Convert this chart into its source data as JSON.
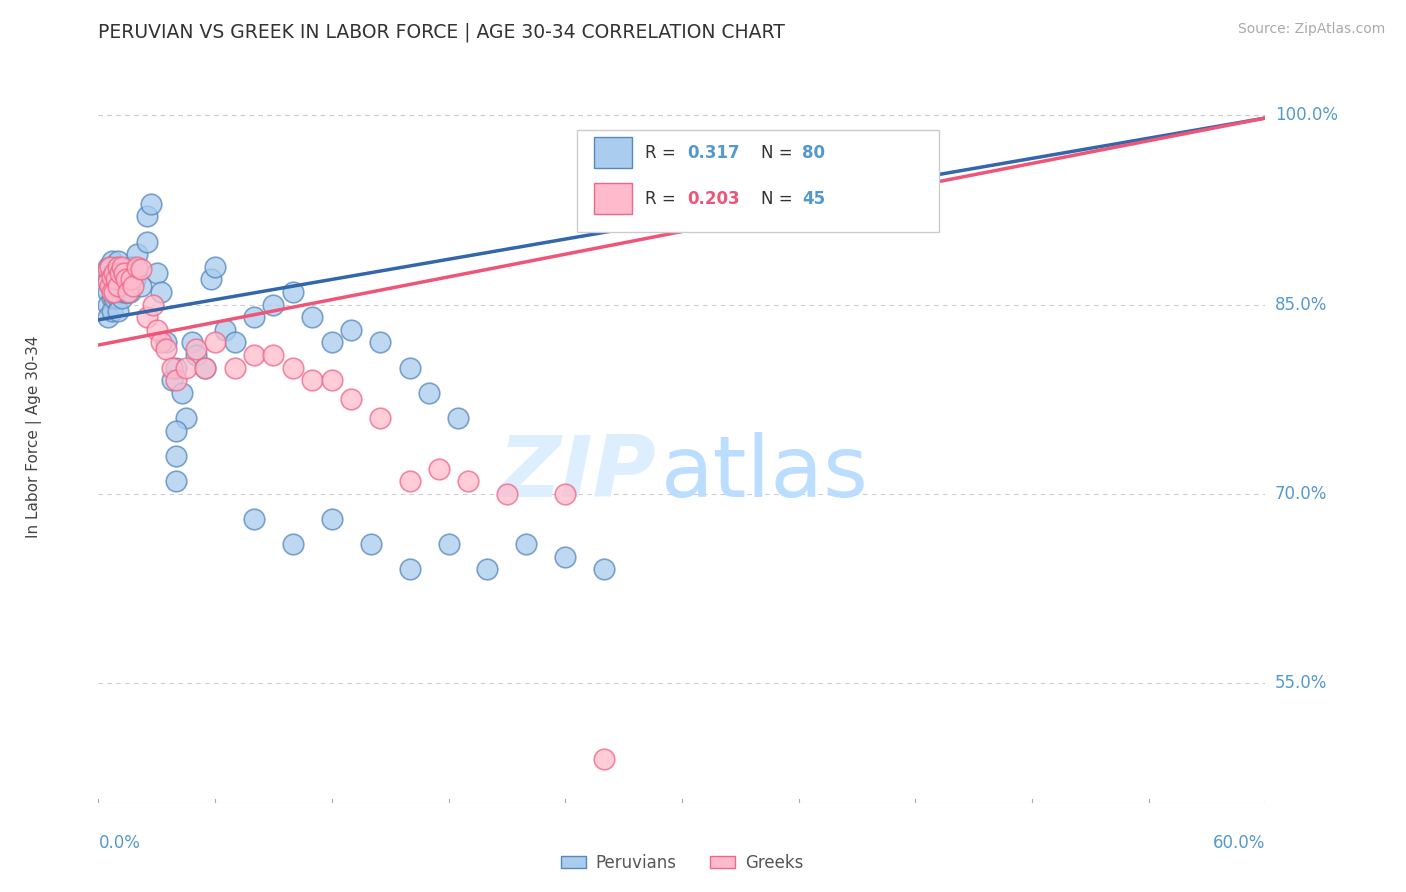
{
  "title": "PERUVIAN VS GREEK IN LABOR FORCE | AGE 30-34 CORRELATION CHART",
  "source": "Source: ZipAtlas.com",
  "ylabel": "In Labor Force | Age 30-34",
  "xlim": [
    0.0,
    0.6
  ],
  "ylim": [
    0.455,
    1.035
  ],
  "ytick_vals": [
    1.0,
    0.85,
    0.7,
    0.55
  ],
  "ytick_labels": [
    "100.0%",
    "85.0%",
    "70.0%",
    "55.0%"
  ],
  "blue_R": "0.317",
  "blue_N": "80",
  "pink_R": "0.203",
  "pink_N": "45",
  "blue_color_face": "#AACCEE",
  "blue_color_edge": "#5588BB",
  "pink_color_face": "#FFBBCC",
  "pink_color_edge": "#EE6688",
  "blue_line_color": "#3366AA",
  "pink_line_color": "#EE5577",
  "legend_label_blue": "Peruvians",
  "legend_label_pink": "Greeks",
  "blue_line_x0": 0.0,
  "blue_line_y0": 0.838,
  "blue_line_x1": 0.6,
  "blue_line_y1": 0.998,
  "pink_line_x0": 0.0,
  "pink_line_y0": 0.818,
  "pink_line_x1": 0.6,
  "pink_line_y1": 0.998,
  "blue_scatter_x": [
    0.005,
    0.005,
    0.005,
    0.005,
    0.005,
    0.007,
    0.007,
    0.007,
    0.007,
    0.007,
    0.008,
    0.008,
    0.008,
    0.009,
    0.009,
    0.009,
    0.01,
    0.01,
    0.01,
    0.01,
    0.01,
    0.011,
    0.011,
    0.012,
    0.012,
    0.012,
    0.013,
    0.013,
    0.014,
    0.014,
    0.015,
    0.015,
    0.016,
    0.016,
    0.017,
    0.018,
    0.019,
    0.02,
    0.02,
    0.022,
    0.025,
    0.025,
    0.027,
    0.03,
    0.032,
    0.035,
    0.038,
    0.04,
    0.043,
    0.045,
    0.048,
    0.05,
    0.055,
    0.058,
    0.06,
    0.065,
    0.07,
    0.08,
    0.09,
    0.1,
    0.11,
    0.12,
    0.13,
    0.145,
    0.16,
    0.17,
    0.185,
    0.04,
    0.04,
    0.04,
    0.08,
    0.1,
    0.12,
    0.14,
    0.16,
    0.18,
    0.2,
    0.22,
    0.24,
    0.26
  ],
  "blue_scatter_y": [
    0.88,
    0.87,
    0.86,
    0.85,
    0.84,
    0.885,
    0.875,
    0.865,
    0.855,
    0.845,
    0.875,
    0.865,
    0.855,
    0.88,
    0.87,
    0.86,
    0.885,
    0.875,
    0.865,
    0.855,
    0.845,
    0.87,
    0.86,
    0.875,
    0.865,
    0.855,
    0.87,
    0.86,
    0.875,
    0.86,
    0.87,
    0.86,
    0.88,
    0.86,
    0.875,
    0.88,
    0.87,
    0.89,
    0.878,
    0.865,
    0.92,
    0.9,
    0.93,
    0.875,
    0.86,
    0.82,
    0.79,
    0.8,
    0.78,
    0.76,
    0.82,
    0.81,
    0.8,
    0.87,
    0.88,
    0.83,
    0.82,
    0.84,
    0.85,
    0.86,
    0.84,
    0.82,
    0.83,
    0.82,
    0.8,
    0.78,
    0.76,
    0.75,
    0.73,
    0.71,
    0.68,
    0.66,
    0.68,
    0.66,
    0.64,
    0.66,
    0.64,
    0.66,
    0.65,
    0.64
  ],
  "pink_scatter_x": [
    0.005,
    0.005,
    0.006,
    0.006,
    0.007,
    0.007,
    0.008,
    0.008,
    0.009,
    0.01,
    0.01,
    0.011,
    0.012,
    0.013,
    0.014,
    0.015,
    0.017,
    0.018,
    0.02,
    0.022,
    0.025,
    0.028,
    0.03,
    0.032,
    0.035,
    0.038,
    0.04,
    0.045,
    0.05,
    0.055,
    0.06,
    0.07,
    0.08,
    0.09,
    0.1,
    0.11,
    0.12,
    0.13,
    0.145,
    0.16,
    0.175,
    0.19,
    0.21,
    0.24,
    0.26
  ],
  "pink_scatter_y": [
    0.878,
    0.868,
    0.88,
    0.865,
    0.872,
    0.86,
    0.875,
    0.86,
    0.87,
    0.88,
    0.865,
    0.875,
    0.88,
    0.875,
    0.87,
    0.86,
    0.87,
    0.865,
    0.88,
    0.878,
    0.84,
    0.85,
    0.83,
    0.82,
    0.815,
    0.8,
    0.79,
    0.8,
    0.815,
    0.8,
    0.82,
    0.8,
    0.81,
    0.81,
    0.8,
    0.79,
    0.79,
    0.775,
    0.76,
    0.71,
    0.72,
    0.71,
    0.7,
    0.7,
    0.49
  ],
  "watermark_zip": "ZIP",
  "watermark_atlas": "atlas"
}
